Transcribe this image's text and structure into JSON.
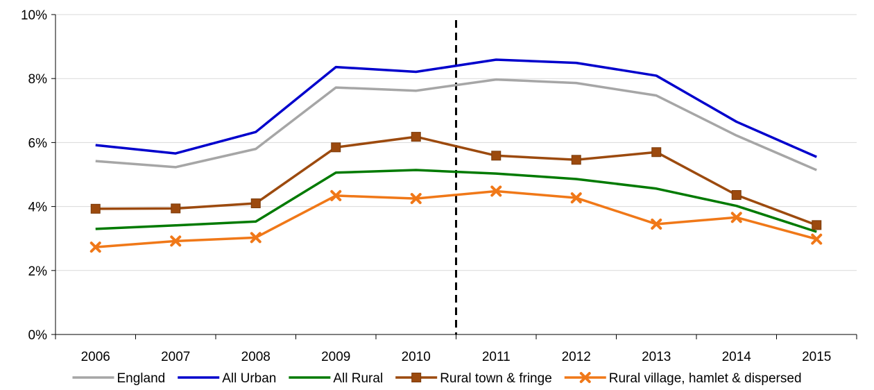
{
  "chart_data": {
    "type": "line",
    "title": "",
    "xlabel": "",
    "ylabel": "",
    "categories": [
      "2006",
      "2007",
      "2008",
      "2009",
      "2010",
      "2011",
      "2012",
      "2013",
      "2014",
      "2015"
    ],
    "ylim": [
      0,
      10
    ],
    "y_ticks": [
      0,
      2,
      4,
      6,
      8,
      10
    ],
    "y_tick_suffix": "%",
    "grid": "horizontal",
    "legend_position": "bottom",
    "reference_line": {
      "between": [
        "2010",
        "2011"
      ],
      "style": "dashed",
      "color": "#000000"
    },
    "series": [
      {
        "name": "England",
        "color": "#a6a6a6",
        "marker": "none",
        "values": [
          5.42,
          5.23,
          5.8,
          7.72,
          7.62,
          7.97,
          7.86,
          7.47,
          6.22,
          5.14
        ]
      },
      {
        "name": "All Urban",
        "color": "#0000cc",
        "marker": "none",
        "values": [
          5.92,
          5.66,
          6.33,
          8.36,
          8.21,
          8.59,
          8.49,
          8.09,
          6.65,
          5.55
        ]
      },
      {
        "name": "All Rural",
        "color": "#007a00",
        "marker": "none",
        "values": [
          3.3,
          3.41,
          3.53,
          5.06,
          5.14,
          5.03,
          4.86,
          4.56,
          4.02,
          3.21
        ]
      },
      {
        "name": "Rural town & fringe",
        "color": "#9c4a0e",
        "marker": "square",
        "values": [
          3.93,
          3.94,
          4.1,
          5.85,
          6.18,
          5.59,
          5.46,
          5.7,
          4.36,
          3.42
        ]
      },
      {
        "name": "Rural village, hamlet & dispersed",
        "color": "#f07818",
        "marker": "x",
        "values": [
          2.73,
          2.92,
          3.03,
          4.34,
          4.25,
          4.48,
          4.27,
          3.45,
          3.66,
          2.98
        ]
      }
    ]
  }
}
